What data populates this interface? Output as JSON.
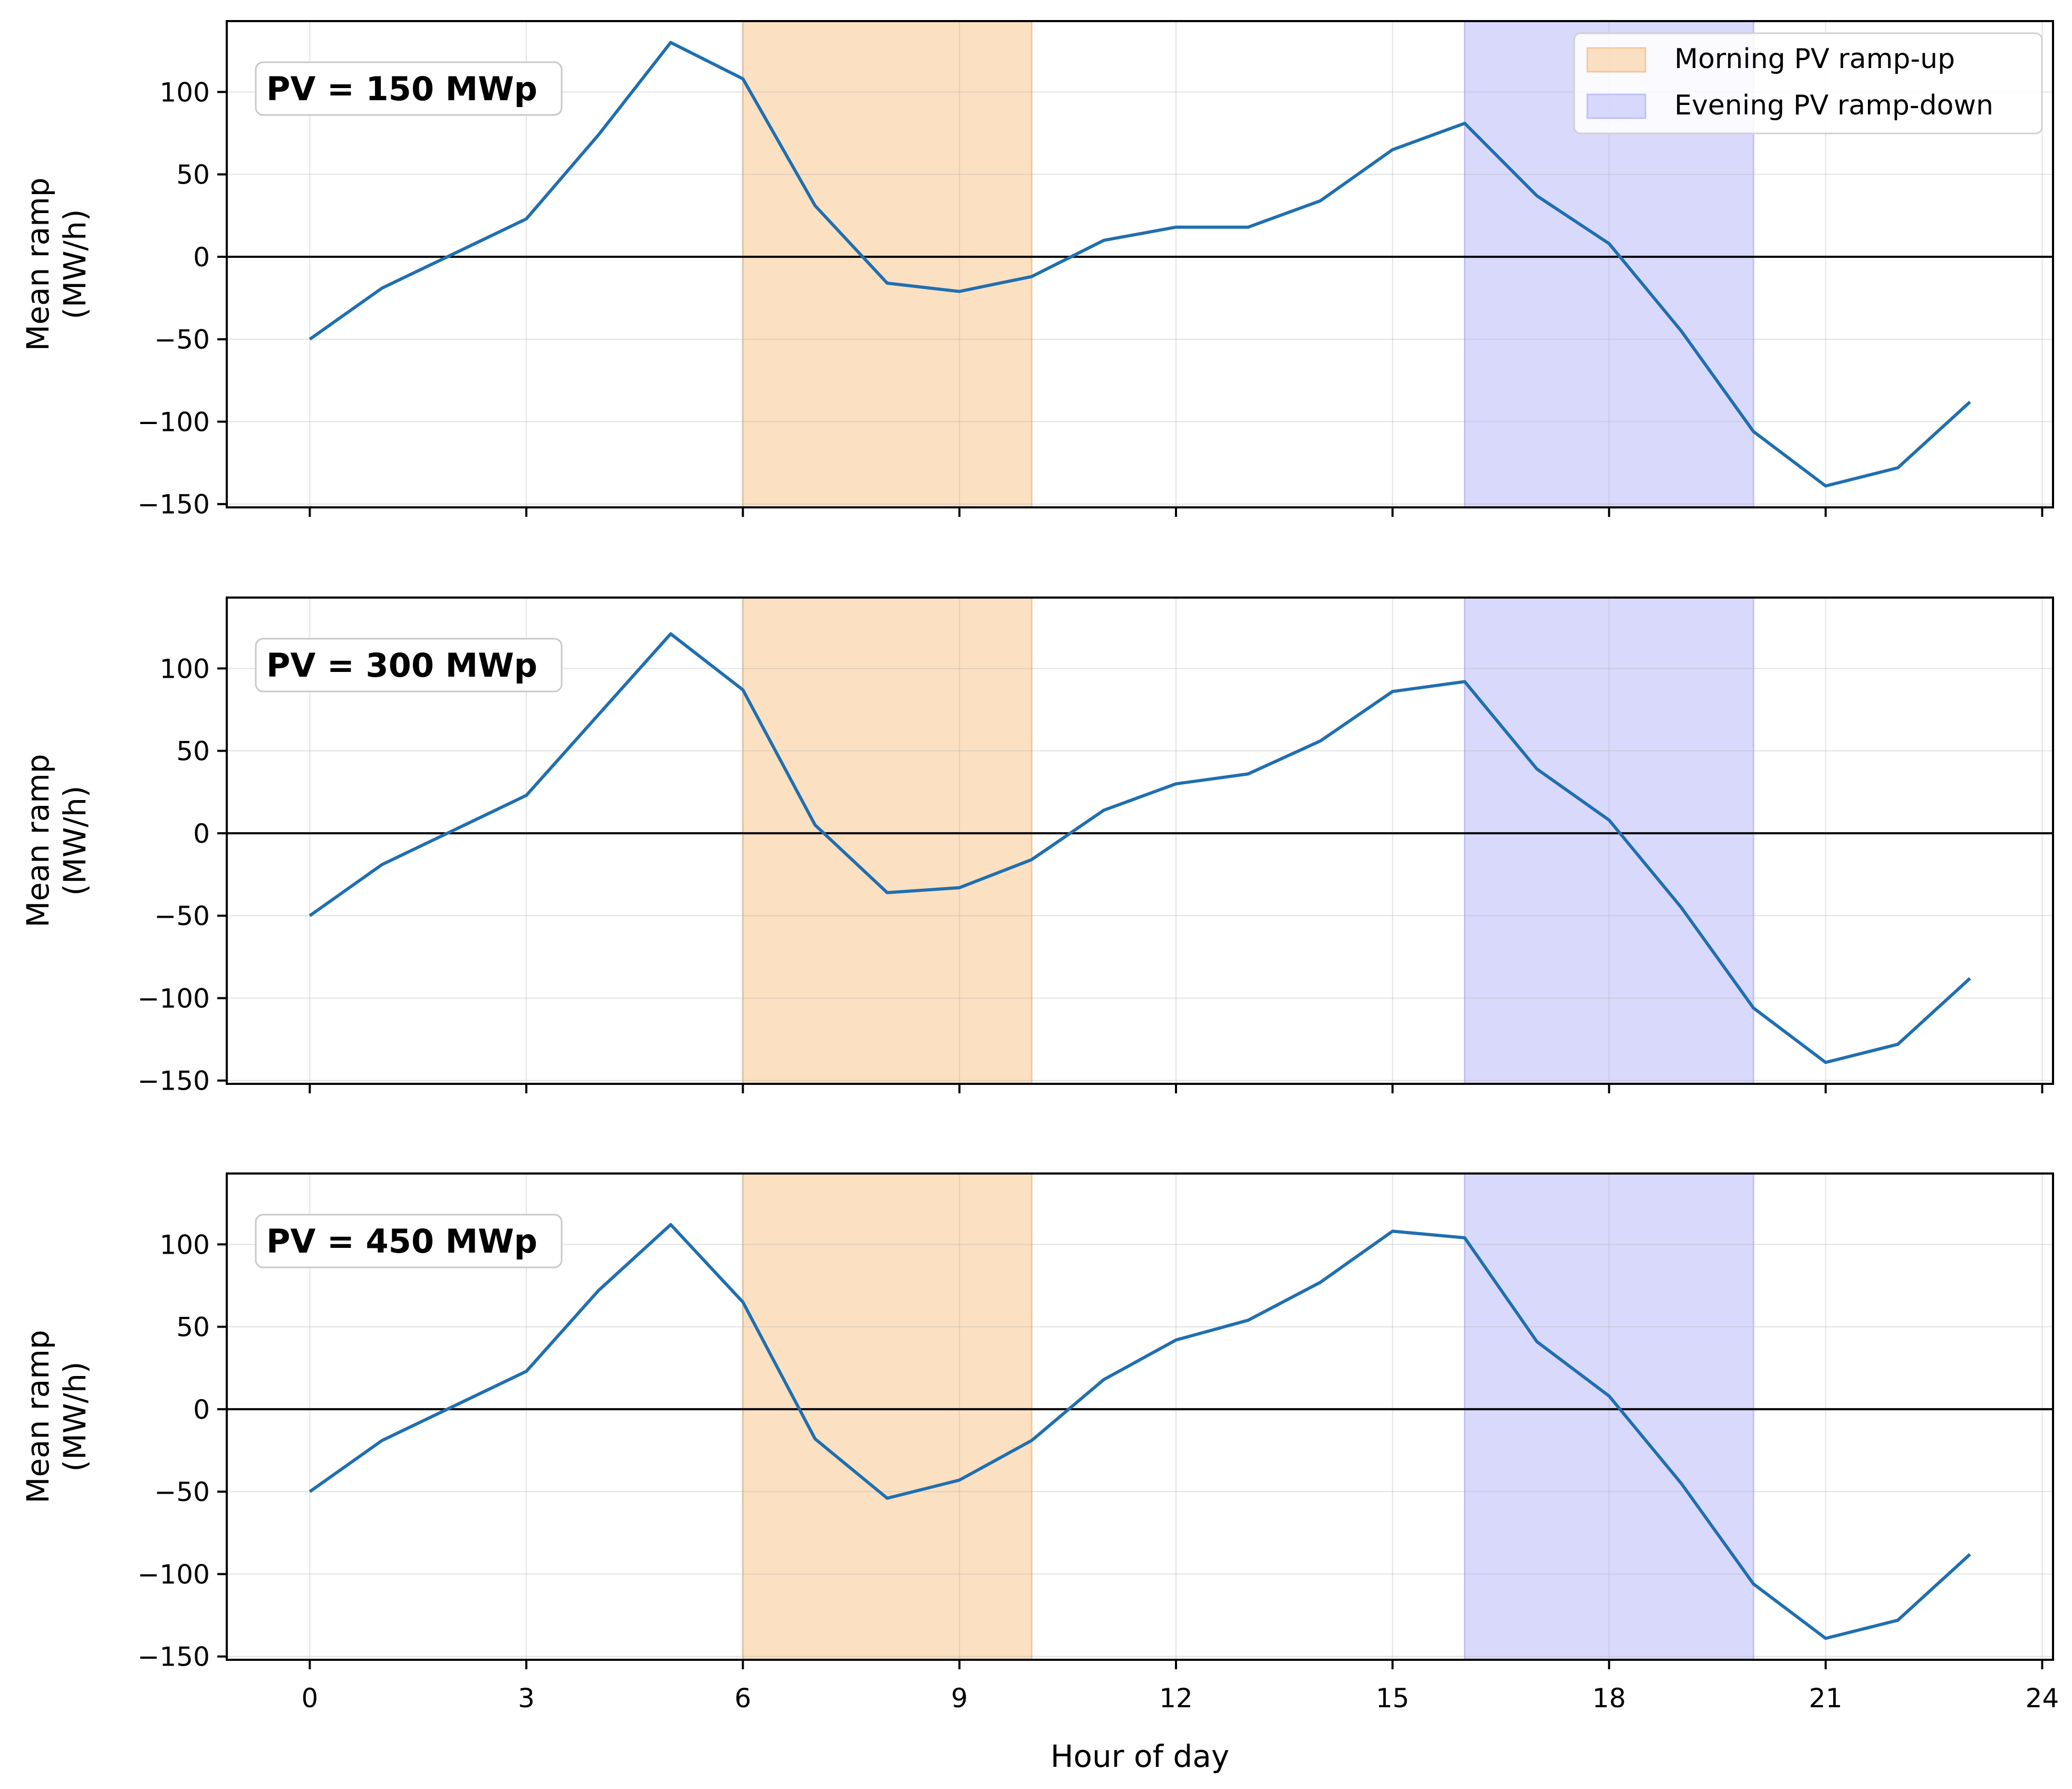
{
  "chart_data": {
    "type": "line",
    "xlabel": "Hour of day",
    "ylabel_line1": "Mean ramp",
    "ylabel_line2": "(MW/h)",
    "xlim": [
      -1.15,
      24.15
    ],
    "ylim": [
      -152,
      143
    ],
    "xticks": [
      0,
      3,
      6,
      9,
      12,
      15,
      18,
      21,
      24
    ],
    "yticks": [
      -150,
      -100,
      -50,
      0,
      50,
      100
    ],
    "grid": true,
    "zero_line": true,
    "line_color": "#1f6fb0",
    "bands": [
      {
        "label": "Morning PV ramp-up",
        "x_start": 6,
        "x_end": 10,
        "color": "#fbd5ae"
      },
      {
        "label": "Evening PV ramp-down",
        "x_start": 16,
        "x_end": 20,
        "color": "#ccccfb"
      }
    ],
    "legend_position": "upper right of top panel",
    "x": [
      0,
      1,
      2,
      3,
      4,
      5,
      6,
      7,
      8,
      9,
      10,
      11,
      12,
      13,
      14,
      15,
      16,
      17,
      18,
      19,
      20,
      21,
      22,
      23
    ],
    "panels": [
      {
        "label": "PV = 150 MWp",
        "values": [
          -50,
          -19,
          2,
          23,
          74,
          130,
          108,
          31,
          -16,
          -21,
          -12,
          10,
          18,
          18,
          34,
          65,
          81,
          37,
          8,
          -45,
          -106,
          -139,
          -128,
          -88
        ]
      },
      {
        "label": "PV = 300 MWp",
        "values": [
          -50,
          -19,
          2,
          23,
          72,
          121,
          87,
          5,
          -36,
          -33,
          -16,
          14,
          30,
          36,
          56,
          86,
          92,
          39,
          8,
          -45,
          -106,
          -139,
          -128,
          -88
        ]
      },
      {
        "label": "PV = 450 MWp",
        "values": [
          -50,
          -19,
          2,
          23,
          72,
          112,
          65,
          -18,
          -54,
          -43,
          -19,
          18,
          42,
          54,
          77,
          108,
          104,
          41,
          8,
          -45,
          -106,
          -139,
          -128,
          -88
        ]
      }
    ]
  }
}
